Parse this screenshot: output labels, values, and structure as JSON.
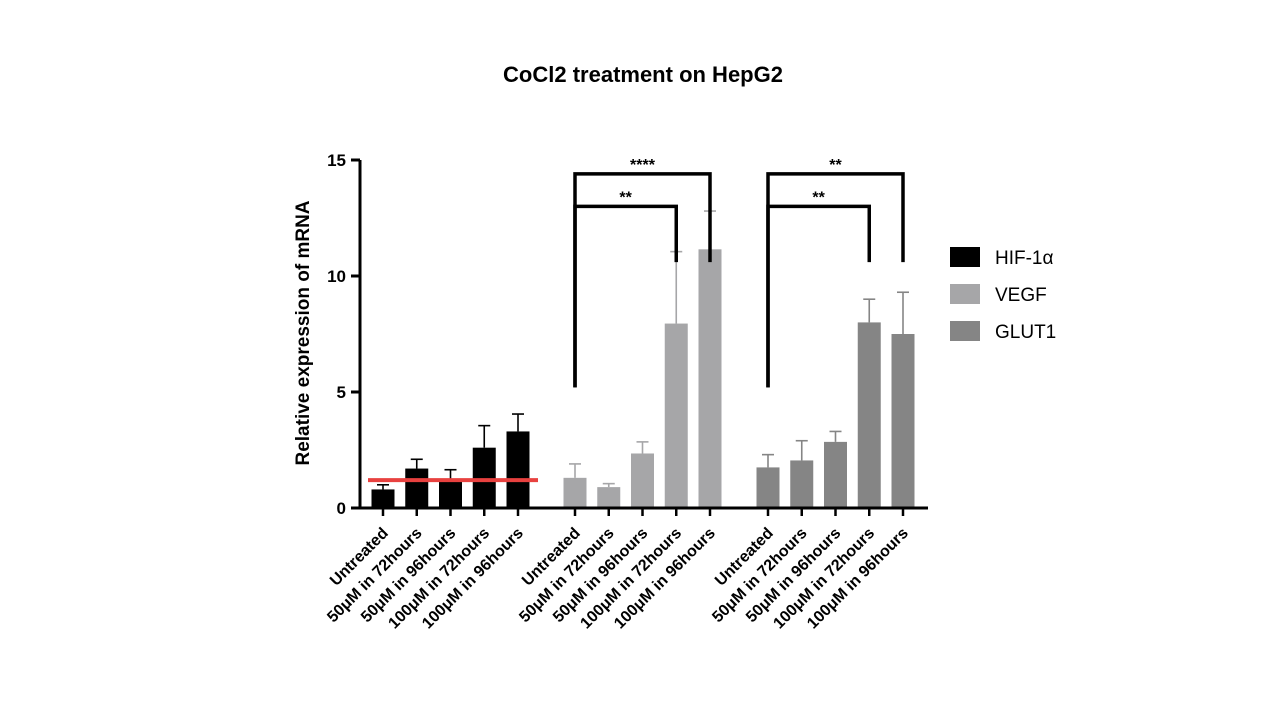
{
  "chart_data": {
    "type": "bar",
    "title": "CoCl2 treatment on HepG2",
    "ylabel": "Relative expression of mRNA",
    "xlabel": "",
    "ylim": [
      0,
      15
    ],
    "yticks": [
      0,
      5,
      10,
      15
    ],
    "grid": false,
    "legend_position": "right",
    "categories": [
      "Untreated",
      "50μM in 72hours",
      "50μM in 96hours",
      "100μM in 72hours",
      "100μM in 96hours"
    ],
    "series": [
      {
        "name": "HIF-1α",
        "color": "#000000",
        "values": [
          0.8,
          1.7,
          1.2,
          2.6,
          3.3
        ],
        "errors": [
          0.2,
          0.4,
          0.45,
          0.95,
          0.75
        ]
      },
      {
        "name": "VEGF",
        "color": "#a6a6a8",
        "values": [
          1.3,
          0.9,
          2.35,
          7.95,
          11.15
        ],
        "errors": [
          0.6,
          0.15,
          0.5,
          3.1,
          1.65
        ]
      },
      {
        "name": "GLUT1",
        "color": "#858585",
        "values": [
          1.75,
          2.05,
          2.85,
          8.0,
          7.5
        ],
        "errors": [
          0.55,
          0.85,
          0.45,
          1.0,
          1.8
        ]
      }
    ],
    "reference_line": {
      "y": 1.2,
      "color": "#e8413f"
    },
    "significance": [
      {
        "series": 1,
        "from": 0,
        "to": 3,
        "label": "**",
        "level": 13.0
      },
      {
        "series": 1,
        "from": 0,
        "to": 4,
        "label": "****",
        "level": 14.4
      },
      {
        "series": 2,
        "from": 0,
        "to": 3,
        "label": "**",
        "level": 13.0
      },
      {
        "series": 2,
        "from": 0,
        "to": 4,
        "label": "**",
        "level": 14.4
      }
    ]
  }
}
